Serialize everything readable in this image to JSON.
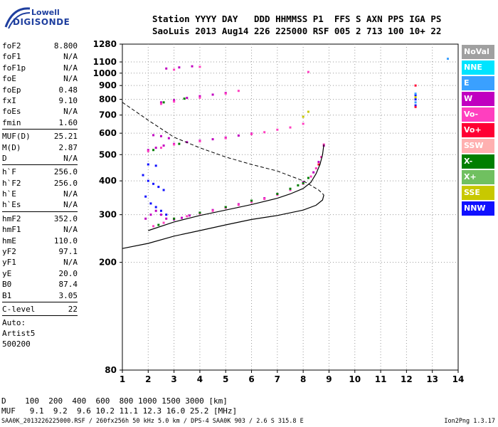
{
  "logo": {
    "line1": "Lowell",
    "line2": "DIGISONDE"
  },
  "header": {
    "line1": "Station YYYY DAY   DDD HHMMSS P1  FFS S AXN PPS IGA PS",
    "line2": "SaoLuis 2013 Aug14 226 225000 RSF 005 2 713 100 10+ 22"
  },
  "params": {
    "group1": [
      {
        "name": "foF2",
        "value": "8.800"
      },
      {
        "name": "foF1",
        "value": "N/A"
      },
      {
        "name": "foF1p",
        "value": "N/A"
      },
      {
        "name": "foE",
        "value": "N/A"
      },
      {
        "name": "foEp",
        "value": "0.48"
      },
      {
        "name": "fxI",
        "value": "9.10"
      },
      {
        "name": "foEs",
        "value": "N/A"
      },
      {
        "name": "fmin",
        "value": "1.60"
      }
    ],
    "group2": [
      {
        "name": "MUF(D)",
        "value": "25.21"
      },
      {
        "name": "M(D)",
        "value": "2.87"
      },
      {
        "name": "D",
        "value": "N/A"
      }
    ],
    "group3": [
      {
        "name": "h`F",
        "value": "256.0"
      },
      {
        "name": "h`F2",
        "value": "256.0"
      },
      {
        "name": "h`E",
        "value": "N/A"
      },
      {
        "name": "h`Es",
        "value": "N/A"
      }
    ],
    "group4": [
      {
        "name": "hmF2",
        "value": "352.0"
      },
      {
        "name": "hmF1",
        "value": "N/A"
      },
      {
        "name": "hmE",
        "value": "110.0"
      },
      {
        "name": "yF2",
        "value": "97.1"
      },
      {
        "name": "yF1",
        "value": "N/A"
      },
      {
        "name": "yE",
        "value": "20.0"
      },
      {
        "name": "B0",
        "value": "87.4"
      },
      {
        "name": "B1",
        "value": "3.05"
      }
    ],
    "clevel": {
      "name": "C-level",
      "value": "22"
    },
    "auto": [
      "Auto:",
      "Artist5",
      "500200"
    ]
  },
  "legend": [
    {
      "label": "NoVal",
      "color": "#a0a0a0"
    },
    {
      "label": "NNE",
      "color": "#00e4ff"
    },
    {
      "label": "E",
      "color": "#3aa0ff"
    },
    {
      "label": "W",
      "color": "#c000c0"
    },
    {
      "label": "Vo-",
      "color": "#ff3fbf"
    },
    {
      "label": "Vo+",
      "color": "#ff0033"
    },
    {
      "label": "SSW",
      "color": "#ffb0b0"
    },
    {
      "label": "X-",
      "color": "#007f00"
    },
    {
      "label": "X+",
      "color": "#70c060"
    },
    {
      "label": "SSE",
      "color": "#c8c800"
    },
    {
      "label": "NNW",
      "color": "#1010ff"
    }
  ],
  "bottom": {
    "line1": "D    100  200  400  600  800 1000 1500 3000 [km]",
    "line2": "MUF   9.1  9.2  9.6 10.2 11.1 12.3 16.0 25.2 [MHz]",
    "footer": "SAA0K_2013226225000.RSF / 260fx256h 50 kHz 5.0 km / DPS-4 SAA0K 903 / 2.6 S 315.8 E",
    "version": "Ion2Png 1.3.17"
  },
  "chart_data": {
    "type": "scatter",
    "xlim": [
      1,
      14
    ],
    "x_ticks": [
      1,
      2,
      3,
      4,
      5,
      6,
      7,
      8,
      9,
      10,
      11,
      12,
      13,
      14
    ],
    "y_ticks": [
      80,
      200,
      300,
      400,
      500,
      600,
      700,
      800,
      900,
      1000,
      1100,
      1280
    ],
    "y_scale": "log",
    "ylim": [
      80,
      1280
    ],
    "grid": true,
    "series": [
      {
        "name": "W",
        "color": "#c000c0",
        "points": [
          [
            1.9,
            290
          ],
          [
            2.1,
            300
          ],
          [
            2.3,
            310
          ],
          [
            2.5,
            300
          ],
          [
            2.7,
            290
          ],
          [
            3.0,
            288
          ],
          [
            3.3,
            292
          ],
          [
            3.6,
            298
          ],
          [
            4.0,
            305
          ],
          [
            4.5,
            312
          ],
          [
            5.0,
            320
          ],
          [
            5.5,
            328
          ],
          [
            6.0,
            336
          ],
          [
            6.5,
            345
          ],
          [
            7.0,
            358
          ],
          [
            7.5,
            372
          ],
          [
            8.0,
            395
          ],
          [
            8.4,
            430
          ],
          [
            8.6,
            470
          ],
          [
            8.8,
            540
          ],
          [
            2.0,
            520
          ],
          [
            2.3,
            530
          ],
          [
            2.6,
            540
          ],
          [
            3.0,
            548
          ],
          [
            3.5,
            556
          ],
          [
            4.0,
            563
          ],
          [
            4.5,
            570
          ],
          [
            5.0,
            578
          ],
          [
            5.5,
            588
          ],
          [
            6.0,
            598
          ],
          [
            2.2,
            590
          ],
          [
            2.5,
            585
          ],
          [
            2.8,
            575
          ],
          [
            2.5,
            780
          ],
          [
            3.0,
            795
          ],
          [
            3.5,
            810
          ],
          [
            4.0,
            822
          ],
          [
            4.5,
            833
          ],
          [
            5.0,
            845
          ],
          [
            2.7,
            1040
          ],
          [
            3.2,
            1050
          ],
          [
            3.7,
            1060
          ]
        ]
      },
      {
        "name": "Vo-",
        "color": "#ff3fbf",
        "points": [
          [
            2.2,
            272
          ],
          [
            2.6,
            280
          ],
          [
            3.0,
            290
          ],
          [
            3.5,
            296
          ],
          [
            4.0,
            303
          ],
          [
            4.5,
            310
          ],
          [
            5.0,
            318
          ],
          [
            5.5,
            326
          ],
          [
            6.0,
            334
          ],
          [
            6.5,
            343
          ],
          [
            7.0,
            355
          ],
          [
            7.5,
            370
          ],
          [
            8.0,
            390
          ],
          [
            8.3,
            415
          ],
          [
            8.5,
            445
          ],
          [
            8.7,
            490
          ],
          [
            8.8,
            545
          ],
          [
            2.0,
            515
          ],
          [
            2.5,
            530
          ],
          [
            3.0,
            545
          ],
          [
            4.0,
            560
          ],
          [
            5.0,
            575
          ],
          [
            6.0,
            595
          ],
          [
            6.5,
            605
          ],
          [
            7.0,
            618
          ],
          [
            7.5,
            630
          ],
          [
            8.0,
            650
          ],
          [
            2.5,
            770
          ],
          [
            3.0,
            785
          ],
          [
            4.0,
            812
          ],
          [
            5.0,
            840
          ],
          [
            5.5,
            860
          ],
          [
            3.0,
            1030
          ],
          [
            4.0,
            1055
          ],
          [
            8.2,
            1010
          ]
        ]
      },
      {
        "name": "X-",
        "color": "#007f00",
        "points": [
          [
            2.4,
            275
          ],
          [
            3.0,
            290
          ],
          [
            4.0,
            305
          ],
          [
            5.0,
            320
          ],
          [
            6.0,
            338
          ],
          [
            7.0,
            358
          ],
          [
            7.5,
            374
          ],
          [
            7.8,
            385
          ],
          [
            8.0,
            392
          ],
          [
            8.2,
            410
          ],
          [
            2.2,
            520
          ],
          [
            3.2,
            548
          ],
          [
            2.6,
            780
          ],
          [
            3.4,
            805
          ]
        ]
      },
      {
        "name": "NNW",
        "color": "#1010ff",
        "points": [
          [
            1.8,
            420
          ],
          [
            2.0,
            400
          ],
          [
            2.2,
            390
          ],
          [
            2.4,
            380
          ],
          [
            2.6,
            370
          ],
          [
            1.9,
            350
          ],
          [
            2.1,
            330
          ],
          [
            2.3,
            320
          ],
          [
            2.5,
            310
          ],
          [
            2.7,
            300
          ],
          [
            2.0,
            460
          ],
          [
            2.3,
            455
          ],
          [
            12.35,
            800
          ],
          [
            12.35,
            830
          ],
          [
            12.35,
            760
          ]
        ]
      },
      {
        "name": "E",
        "color": "#3aa0ff",
        "points": [
          [
            12.35,
            780
          ],
          [
            12.35,
            840
          ],
          [
            13.6,
            1130
          ]
        ]
      },
      {
        "name": "SSE",
        "color": "#c8c800",
        "points": [
          [
            8.0,
            690
          ],
          [
            8.2,
            720
          ],
          [
            12.35,
            815
          ]
        ]
      },
      {
        "name": "Vo+",
        "color": "#ff0033",
        "points": [
          [
            8.6,
            460
          ],
          [
            12.35,
            900
          ],
          [
            12.35,
            750
          ]
        ]
      }
    ],
    "curves": [
      {
        "name": "profile-dashed",
        "style": "dashed",
        "points": [
          [
            1.0,
            780
          ],
          [
            2.0,
            670
          ],
          [
            3.0,
            580
          ],
          [
            4.0,
            530
          ],
          [
            5.0,
            490
          ],
          [
            6.0,
            460
          ],
          [
            7.0,
            435
          ],
          [
            8.0,
            400
          ],
          [
            8.6,
            370
          ],
          [
            8.8,
            355
          ]
        ]
      },
      {
        "name": "profile-solid",
        "style": "solid",
        "points": [
          [
            1.0,
            225
          ],
          [
            2.0,
            235
          ],
          [
            3.0,
            250
          ],
          [
            4.0,
            262
          ],
          [
            5.0,
            275
          ],
          [
            6.0,
            288
          ],
          [
            7.0,
            298
          ],
          [
            8.0,
            312
          ],
          [
            8.5,
            325
          ],
          [
            8.75,
            340
          ],
          [
            8.8,
            355
          ]
        ]
      },
      {
        "name": "trace-solid",
        "style": "solid",
        "points": [
          [
            2.0,
            262
          ],
          [
            3.0,
            282
          ],
          [
            4.0,
            298
          ],
          [
            5.0,
            312
          ],
          [
            6.0,
            327
          ],
          [
            7.0,
            345
          ],
          [
            7.5,
            358
          ],
          [
            8.0,
            375
          ],
          [
            8.3,
            395
          ],
          [
            8.5,
            425
          ],
          [
            8.65,
            460
          ],
          [
            8.75,
            500
          ],
          [
            8.8,
            545
          ]
        ]
      }
    ]
  }
}
